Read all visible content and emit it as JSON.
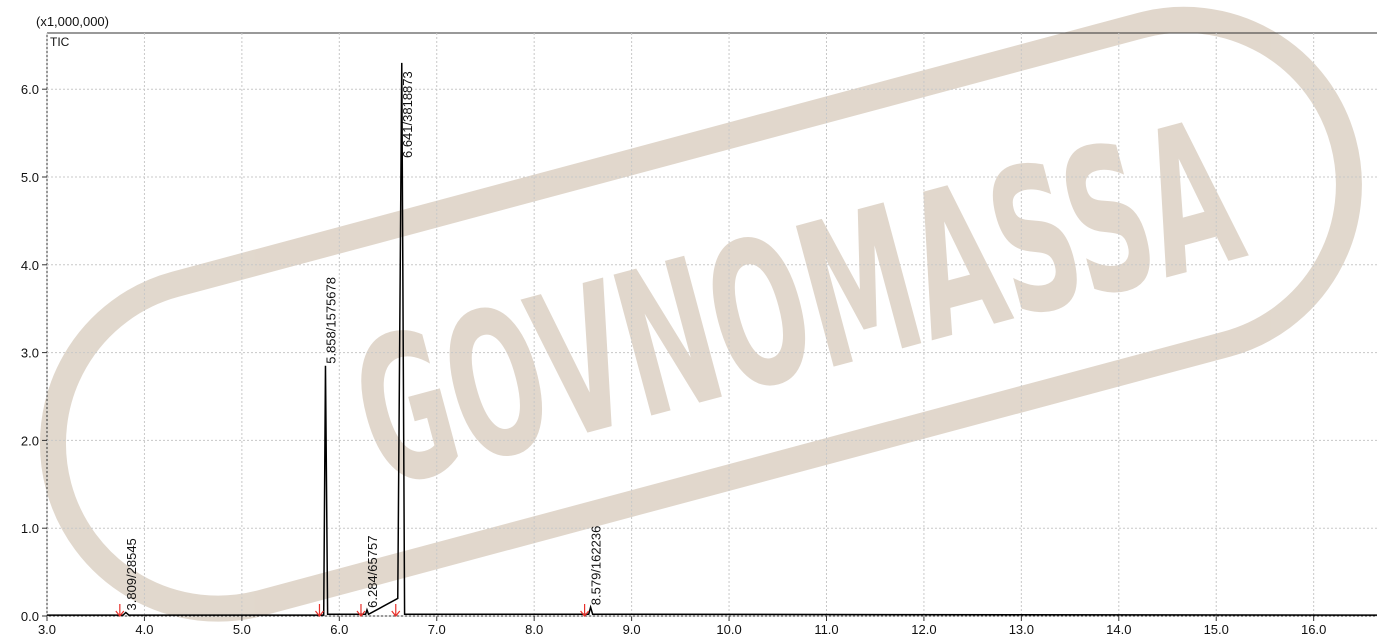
{
  "chart_data": {
    "type": "line",
    "unit_label": "(x1,000,000)",
    "trace_label": "TIC",
    "watermark": "GOVNOMASSA",
    "xlim": [
      3.0,
      16.65
    ],
    "ylim": [
      0,
      6.64
    ],
    "xticks": [
      {
        "value": 3,
        "label": "3.0"
      },
      {
        "value": 4,
        "label": "4.0"
      },
      {
        "value": 5,
        "label": "5.0"
      },
      {
        "value": 6,
        "label": "6.0"
      },
      {
        "value": 7,
        "label": "7.0"
      },
      {
        "value": 8,
        "label": "8.0"
      },
      {
        "value": 9,
        "label": "9.0"
      },
      {
        "value": 10,
        "label": "10.0"
      },
      {
        "value": 11,
        "label": "11.0"
      },
      {
        "value": 12,
        "label": "12.0"
      },
      {
        "value": 13,
        "label": "13.0"
      },
      {
        "value": 14,
        "label": "14.0"
      },
      {
        "value": 15,
        "label": "15.0"
      },
      {
        "value": 16,
        "label": "16.0"
      }
    ],
    "yticks": [
      {
        "value": 0,
        "label": "0.0"
      },
      {
        "value": 1,
        "label": "1.0"
      },
      {
        "value": 2,
        "label": "2.0"
      },
      {
        "value": 3,
        "label": "3.0"
      },
      {
        "value": 4,
        "label": "4.0"
      },
      {
        "value": 5,
        "label": "5.0"
      },
      {
        "value": 6,
        "label": "6.0"
      }
    ],
    "grid": true,
    "x": [
      3.0,
      3.78,
      3.809,
      3.84,
      5.84,
      5.858,
      5.88,
      6.27,
      6.284,
      6.3,
      6.6,
      6.641,
      6.67,
      8.56,
      8.579,
      8.6,
      16.65
    ],
    "series": [
      {
        "name": "TIC",
        "color": "#000000",
        "values": [
          0.01,
          0.01,
          0.04,
          0.01,
          0.01,
          2.85,
          0.02,
          0.02,
          0.07,
          0.02,
          0.2,
          6.3,
          0.02,
          0.02,
          0.1,
          0.02,
          0.01
        ]
      }
    ],
    "annotations": [
      {
        "text": "3.809/28545",
        "x": 3.809,
        "y": 0.04
      },
      {
        "text": "5.858/1575678",
        "x": 5.858,
        "y": 2.85
      },
      {
        "text": "6.284/65757",
        "x": 6.284,
        "y": 0.07
      },
      {
        "text": "6.641/3818873",
        "x": 6.641,
        "y": 6.3
      },
      {
        "text": "8.579/162236",
        "x": 8.579,
        "y": 0.1
      }
    ]
  }
}
